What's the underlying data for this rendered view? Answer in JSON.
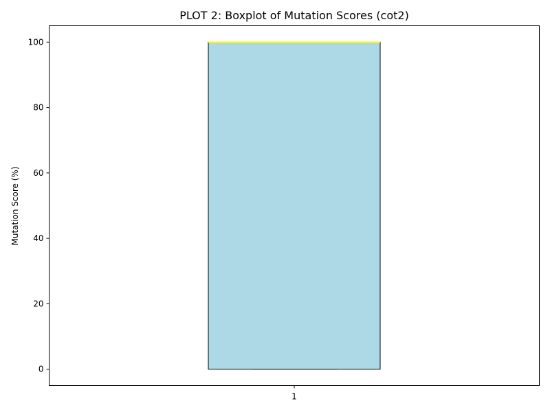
{
  "chart_data": {
    "type": "box",
    "title": "PLOT 2: Boxplot of Mutation Scores (cot2)",
    "xlabel": "",
    "ylabel": "Mutation Score (%)",
    "categories": [
      "1"
    ],
    "boxes": [
      {
        "category": "1",
        "whisker_low": 0,
        "q1": 0,
        "median": 100,
        "q3": 100,
        "whisker_high": 100
      }
    ],
    "ylim": [
      -5,
      105
    ],
    "yticks": [
      0,
      20,
      40,
      60,
      80,
      100
    ],
    "xticks": [
      "1"
    ],
    "grid": false,
    "colors": {
      "box_fill": "#add8e6",
      "box_edge": "#000000",
      "median": "#ffff00"
    }
  }
}
